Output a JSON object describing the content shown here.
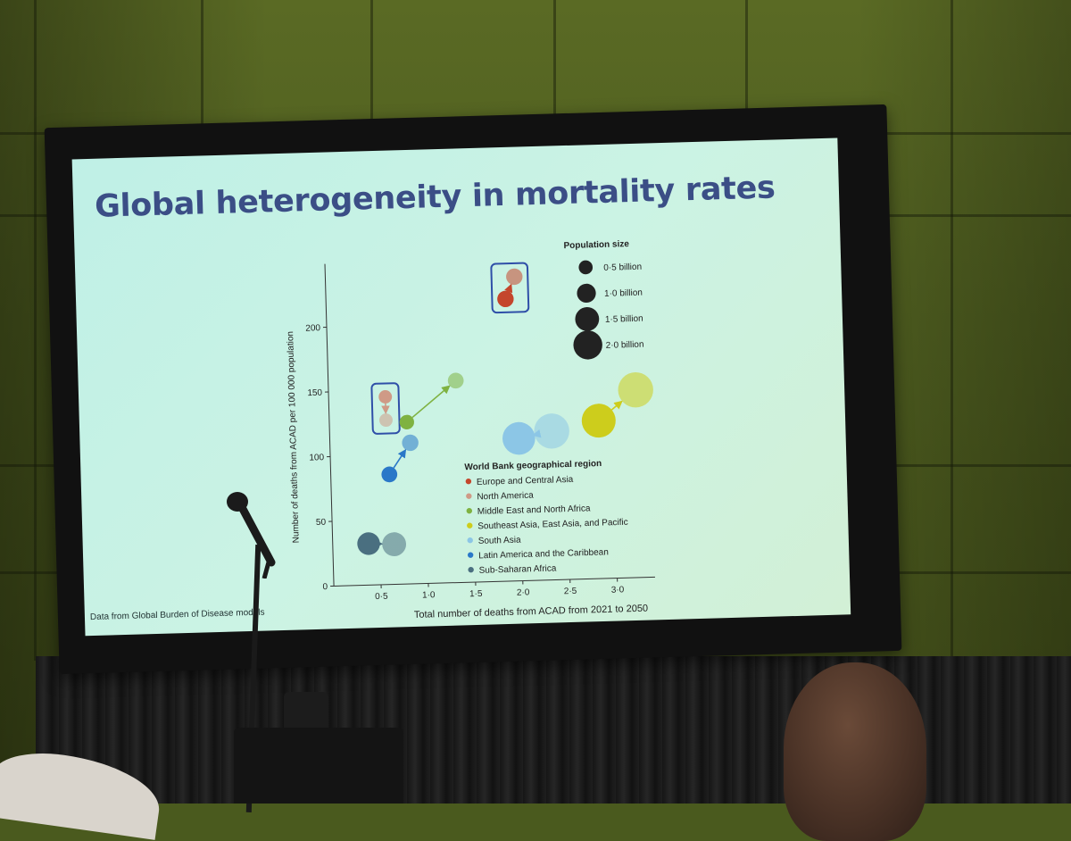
{
  "slide": {
    "title": "Global heterogeneity in mortality rates",
    "footnote": "Data from Global Burden of Disease models"
  },
  "chart_data": {
    "type": "scatter",
    "title": "",
    "xlabel": "Total number of deaths from ACAD from 2021 to 2050",
    "ylabel": "Number of deaths from ACAD per 100 000 population",
    "xlim": [
      0,
      3.4
    ],
    "ylim": [
      0,
      240
    ],
    "x_ticks": [
      0.5,
      1.0,
      1.5,
      2.0,
      2.5,
      3.0
    ],
    "x_tick_labels": [
      "0·5",
      "1·0",
      "1·5",
      "2·0",
      "2·5",
      "3·0"
    ],
    "y_ticks": [
      0,
      50,
      100,
      150,
      200
    ],
    "y_tick_labels": [
      "0",
      "50",
      "100",
      "150",
      "200"
    ],
    "grid": false,
    "size_legend": {
      "title": "Population size",
      "entries": [
        {
          "label": "0·5 billion",
          "value": 0.5
        },
        {
          "label": "1·0 billion",
          "value": 1.0
        },
        {
          "label": "1·5 billion",
          "value": 1.5
        },
        {
          "label": "2·0 billion",
          "value": 2.0
        }
      ]
    },
    "color_legend": {
      "title": "World Bank geographical region",
      "placement": "bottom-right"
    },
    "series": [
      {
        "name": "Europe and Central Asia",
        "color": "#c4462c",
        "highlight": true,
        "start": {
          "x": 1.9,
          "y": 218,
          "pop": 0.6
        },
        "end": {
          "x": 2.0,
          "y": 235,
          "pop": 0.6
        }
      },
      {
        "name": "North America",
        "color": "#cf9a86",
        "highlight": true,
        "start": {
          "x": 0.6,
          "y": 145,
          "pop": 0.35
        },
        "end": {
          "x": 0.6,
          "y": 127,
          "pop": 0.35
        }
      },
      {
        "name": "Middle East and North Africa",
        "color": "#7fb241",
        "start": {
          "x": 0.82,
          "y": 125,
          "pop": 0.45
        },
        "end": {
          "x": 1.35,
          "y": 156,
          "pop": 0.55
        }
      },
      {
        "name": "Southeast Asia, East Asia, and Pacific",
        "color": "#cdcd1c",
        "start": {
          "x": 2.85,
          "y": 122,
          "pop": 2.0
        },
        "end": {
          "x": 3.25,
          "y": 145,
          "pop": 2.1
        }
      },
      {
        "name": "South Asia",
        "color": "#8cc6e6",
        "start": {
          "x": 2.0,
          "y": 110,
          "pop": 1.9
        },
        "end": {
          "x": 2.35,
          "y": 115,
          "pop": 2.1
        }
      },
      {
        "name": "Latin America and the Caribbean",
        "color": "#2a78c8",
        "start": {
          "x": 0.62,
          "y": 85,
          "pop": 0.55
        },
        "end": {
          "x": 0.85,
          "y": 109,
          "pop": 0.6
        }
      },
      {
        "name": "Sub-Saharan Africa",
        "color": "#4a6f80",
        "start": {
          "x": 0.38,
          "y": 32,
          "pop": 1.1
        },
        "end": {
          "x": 0.65,
          "y": 31,
          "pop": 1.2
        }
      }
    ]
  }
}
